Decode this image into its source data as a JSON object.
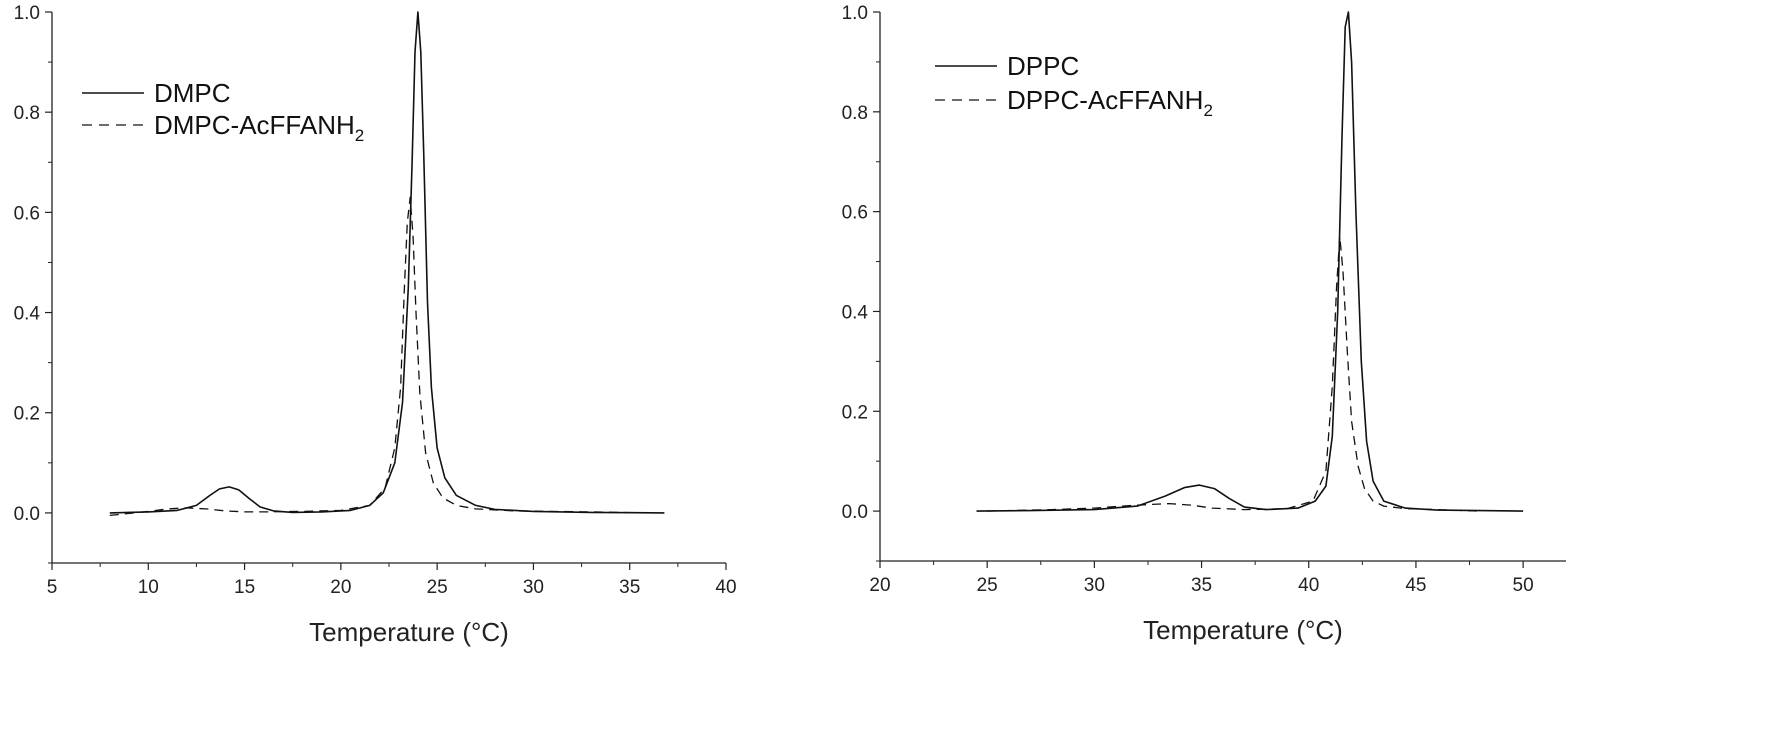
{
  "chart_data": [
    {
      "type": "line",
      "xlabel": "Temperature (°C)",
      "ylabel": "",
      "xlim": [
        5,
        40
      ],
      "ylim": [
        -0.1,
        1.0
      ],
      "xticks": [
        "5",
        "10",
        "15",
        "20",
        "25",
        "30",
        "35",
        "40"
      ],
      "yticks": [
        "0.0",
        "0.2",
        "0.4",
        "0.6",
        "0.8",
        "1.0"
      ],
      "legend": "top-left",
      "grid": false,
      "series": [
        {
          "name": "DMPC",
          "style": "solid",
          "x": [
            8.0,
            10.0,
            11.5,
            12.5,
            13.2,
            13.7,
            14.2,
            14.7,
            15.2,
            15.8,
            16.5,
            17.5,
            19.0,
            20.5,
            21.5,
            22.2,
            22.8,
            23.2,
            23.5,
            23.7,
            23.85,
            24.0,
            24.15,
            24.3,
            24.5,
            24.7,
            25.0,
            25.4,
            26.0,
            27.0,
            28.0,
            30.0,
            33.0,
            36.8
          ],
          "y": [
            0.0,
            0.002,
            0.005,
            0.015,
            0.035,
            0.048,
            0.052,
            0.046,
            0.03,
            0.012,
            0.004,
            0.001,
            0.002,
            0.005,
            0.015,
            0.04,
            0.1,
            0.22,
            0.45,
            0.7,
            0.92,
            1.0,
            0.92,
            0.72,
            0.42,
            0.25,
            0.13,
            0.07,
            0.035,
            0.015,
            0.007,
            0.003,
            0.001,
            0.0
          ]
        },
        {
          "name": "DMPC-AcFFANH2",
          "style": "dashed",
          "x": [
            8.0,
            10.0,
            11.0,
            12.0,
            13.0,
            14.0,
            15.0,
            16.0,
            18.0,
            20.0,
            21.5,
            22.3,
            22.8,
            23.1,
            23.3,
            23.45,
            23.6,
            23.75,
            23.9,
            24.1,
            24.4,
            24.8,
            25.3,
            26.0,
            27.0,
            29.0,
            33.0,
            36.0
          ],
          "y": [
            -0.005,
            0.003,
            0.008,
            0.01,
            0.008,
            0.004,
            0.002,
            0.002,
            0.003,
            0.005,
            0.015,
            0.05,
            0.13,
            0.25,
            0.45,
            0.58,
            0.63,
            0.55,
            0.4,
            0.24,
            0.12,
            0.06,
            0.03,
            0.015,
            0.008,
            0.004,
            0.002,
            0.0
          ]
        }
      ]
    },
    {
      "type": "line",
      "xlabel": "Temperature (°C)",
      "ylabel": "",
      "xlim": [
        20,
        52
      ],
      "ylim": [
        -0.1,
        1.0
      ],
      "xticks": [
        "20",
        "25",
        "30",
        "35",
        "40",
        "45",
        "50"
      ],
      "yticks": [
        "0.0",
        "0.2",
        "0.4",
        "0.6",
        "0.8",
        "1.0"
      ],
      "legend": "top-left",
      "grid": false,
      "series": [
        {
          "name": "DPPC",
          "style": "solid",
          "x": [
            24.5,
            27.0,
            30.0,
            32.0,
            33.3,
            34.2,
            34.9,
            35.6,
            36.3,
            37.0,
            38.0,
            39.5,
            40.3,
            40.8,
            41.1,
            41.35,
            41.55,
            41.7,
            41.85,
            42.0,
            42.2,
            42.45,
            42.7,
            43.0,
            43.5,
            44.5,
            46.0,
            48.0,
            50.0
          ],
          "y": [
            0.0,
            0.001,
            0.003,
            0.01,
            0.03,
            0.047,
            0.052,
            0.045,
            0.025,
            0.008,
            0.003,
            0.006,
            0.02,
            0.05,
            0.15,
            0.4,
            0.75,
            0.97,
            1.0,
            0.9,
            0.6,
            0.3,
            0.14,
            0.06,
            0.02,
            0.006,
            0.002,
            0.001,
            0.0
          ]
        },
        {
          "name": "DPPC-AcFFANH2",
          "style": "dashed",
          "x": [
            25.0,
            28.0,
            30.0,
            32.0,
            33.5,
            34.5,
            35.5,
            37.0,
            39.0,
            40.2,
            40.8,
            41.1,
            41.3,
            41.45,
            41.6,
            41.8,
            42.0,
            42.3,
            42.6,
            43.0,
            43.5,
            44.5,
            46.0,
            48.0
          ],
          "y": [
            0.0,
            0.003,
            0.006,
            0.012,
            0.015,
            0.012,
            0.006,
            0.003,
            0.005,
            0.02,
            0.08,
            0.25,
            0.45,
            0.55,
            0.48,
            0.32,
            0.18,
            0.09,
            0.045,
            0.02,
            0.01,
            0.005,
            0.003,
            0.0
          ]
        }
      ]
    }
  ]
}
